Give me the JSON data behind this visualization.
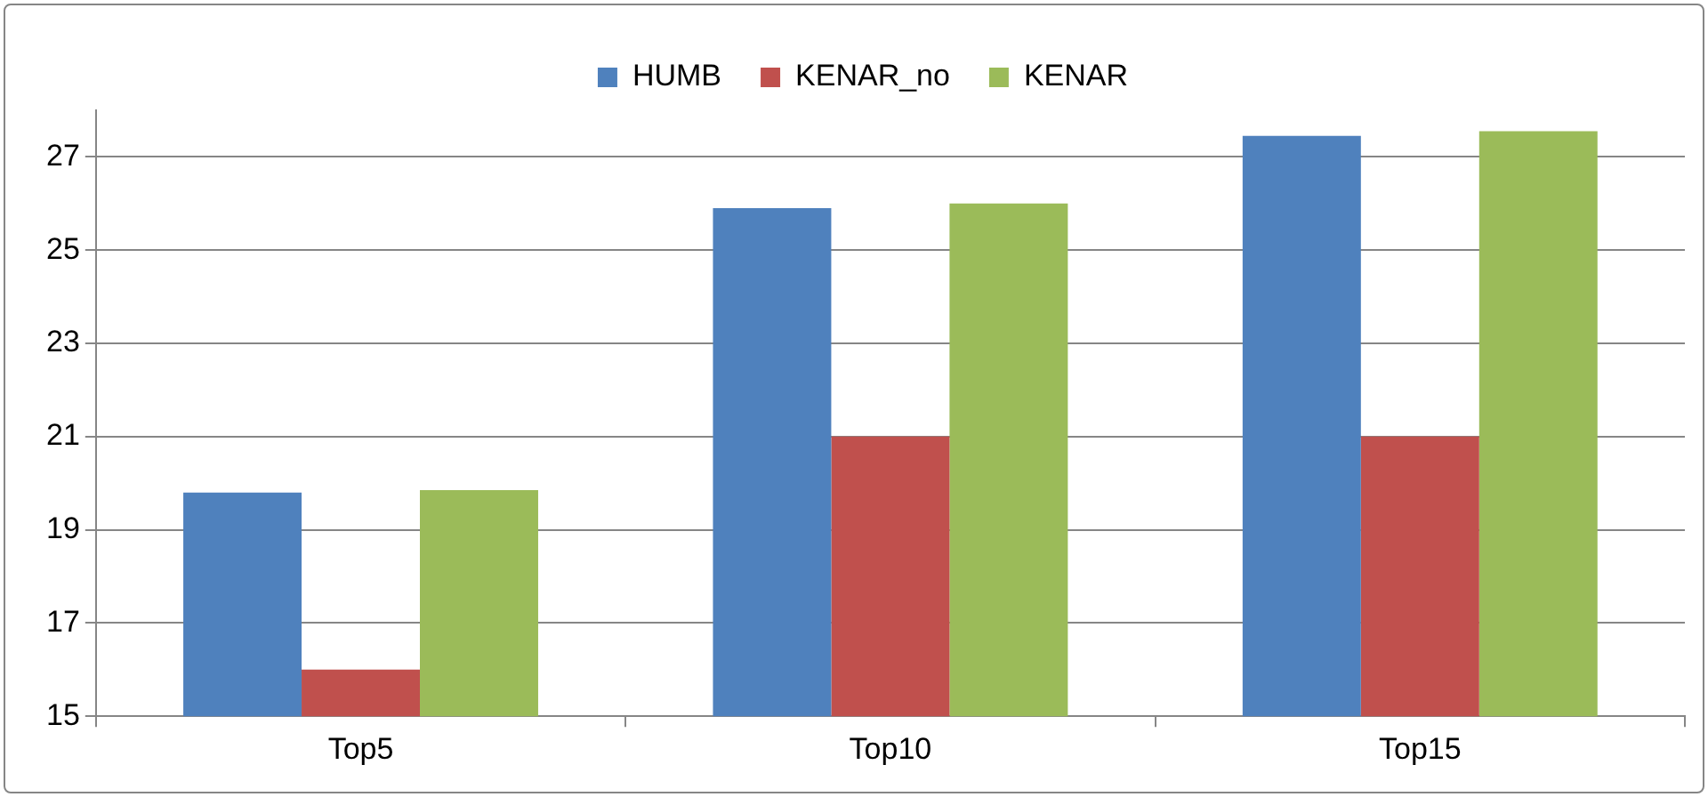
{
  "chart_data": {
    "type": "bar",
    "categories": [
      "Top5",
      "Top10",
      "Top15"
    ],
    "series": [
      {
        "name": "HUMB",
        "color": "#4f81bd",
        "values": [
          19.8,
          25.9,
          27.45
        ]
      },
      {
        "name": "KENAR_no",
        "color": "#c0504d",
        "values": [
          16.0,
          21.0,
          21.0
        ]
      },
      {
        "name": "KENAR",
        "color": "#9bbb59",
        "values": [
          19.85,
          26.0,
          27.55
        ]
      }
    ],
    "ylim": [
      15,
      28
    ],
    "yticks": [
      15,
      17,
      19,
      21,
      23,
      25,
      27
    ],
    "grid": "y",
    "legend": "top"
  }
}
